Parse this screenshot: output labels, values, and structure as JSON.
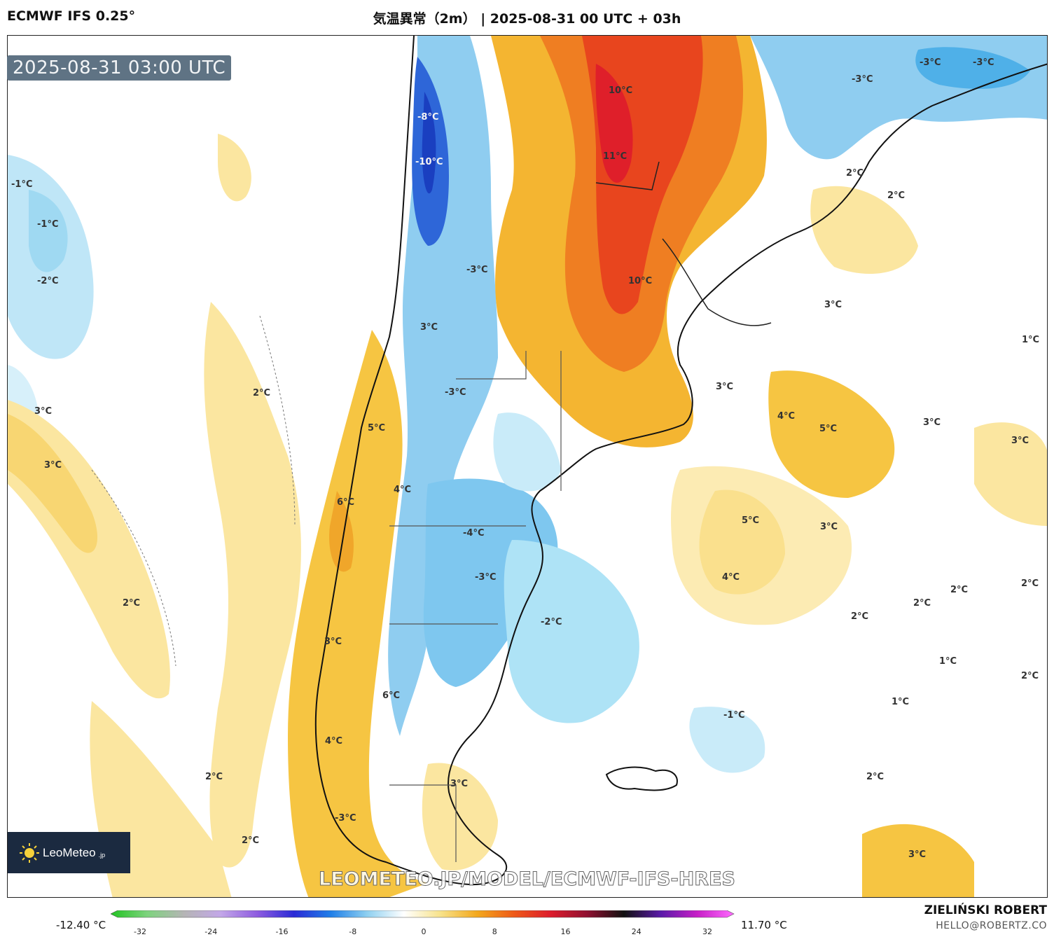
{
  "header": {
    "model": "ECMWF IFS 0.25°",
    "title": "気温異常（2m） | 2025-08-31 00 UTC + 03h"
  },
  "valid_time": "2025-08-31 03:00 UTC",
  "logo": {
    "text": "LeoMeteo",
    "suffix": ".jp"
  },
  "watermark": "LEOMETEO.JP/MODEL/ECMWF-IFS-HRES",
  "colorbar": {
    "min_label": "-12.40 °C",
    "max_label": "11.70 °C",
    "ticks": [
      "-32",
      "-24",
      "-16",
      "-8",
      "0",
      "8",
      "16",
      "24",
      "32"
    ],
    "stops": [
      "#22c422",
      "#7ed37e",
      "#b5b5b5",
      "#c3a7e8",
      "#8e5ce0",
      "#2a2ad6",
      "#1f7fe8",
      "#8fd0f0",
      "#ffffff",
      "#f7e28a",
      "#f3a81c",
      "#ee5a18",
      "#dd1c2c",
      "#8f1030",
      "#111111",
      "#5a1aa8",
      "#c71fc7",
      "#ff6bff"
    ]
  },
  "credit": {
    "name": "ZIELIŃSKI ROBERT",
    "email": "HELLO@ROBERTZ.CO"
  },
  "labels": [
    {
      "text": "-8°C"
    },
    {
      "text": "-10°C"
    },
    {
      "text": "10°C"
    },
    {
      "text": "11°C"
    },
    {
      "text": "-3°C"
    },
    {
      "text": "-3°C"
    },
    {
      "text": "-3°C"
    },
    {
      "text": "2°C"
    },
    {
      "text": "2°C"
    },
    {
      "text": "-1°C"
    },
    {
      "text": "-1°C"
    },
    {
      "text": "-2°C"
    },
    {
      "text": "-3°C"
    },
    {
      "text": "10°C"
    },
    {
      "text": "3°C"
    },
    {
      "text": "1°C"
    },
    {
      "text": "3°C"
    },
    {
      "text": "2°C"
    },
    {
      "text": "3°C"
    },
    {
      "text": "3°C"
    },
    {
      "text": "-3°C"
    },
    {
      "text": "3°C"
    },
    {
      "text": "4°C"
    },
    {
      "text": "5°C"
    },
    {
      "text": "3°C"
    },
    {
      "text": "3°C"
    },
    {
      "text": "5°C"
    },
    {
      "text": "4°C"
    },
    {
      "text": "6°C"
    },
    {
      "text": "-4°C"
    },
    {
      "text": "-3°C"
    },
    {
      "text": "5°C"
    },
    {
      "text": "3°C"
    },
    {
      "text": "4°C"
    },
    {
      "text": "2°C"
    },
    {
      "text": "2°C"
    },
    {
      "text": "2°C"
    },
    {
      "text": "2°C"
    },
    {
      "text": "2°C"
    },
    {
      "text": "-2°C"
    },
    {
      "text": "3°C"
    },
    {
      "text": "1°C"
    },
    {
      "text": "6°C"
    },
    {
      "text": "1°C"
    },
    {
      "text": "-1°C"
    },
    {
      "text": "4°C"
    },
    {
      "text": "2°C"
    },
    {
      "text": "3°C"
    },
    {
      "text": "2°C"
    },
    {
      "text": "2°C"
    },
    {
      "text": "-3°C"
    },
    {
      "text": "3°C"
    },
    {
      "text": "2°C"
    }
  ]
}
